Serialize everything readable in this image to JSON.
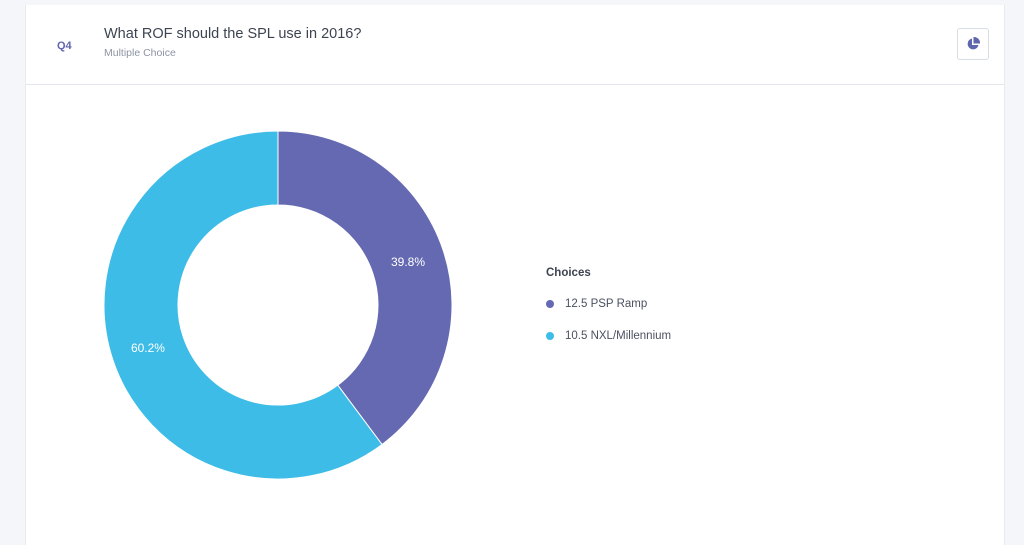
{
  "question": {
    "number": "Q4",
    "title": "What ROF should the SPL use in 2016?",
    "type": "Multiple Choice",
    "chart_toggle_icon": "pie-chart-icon"
  },
  "legend": {
    "title": "Choices"
  },
  "chart_data": {
    "type": "pie",
    "title": "",
    "categories": [
      "12.5 PSP Ramp",
      "10.5 NXL/Millennium"
    ],
    "values": [
      39.8,
      60.2
    ],
    "labels": [
      "39.8%",
      "60.2%"
    ],
    "colors": [
      "#6469b1",
      "#3cbce6"
    ],
    "donut": true,
    "legend_position": "right"
  },
  "colors": {
    "accent": "#5f66ad",
    "background": "#f4f6fa"
  }
}
